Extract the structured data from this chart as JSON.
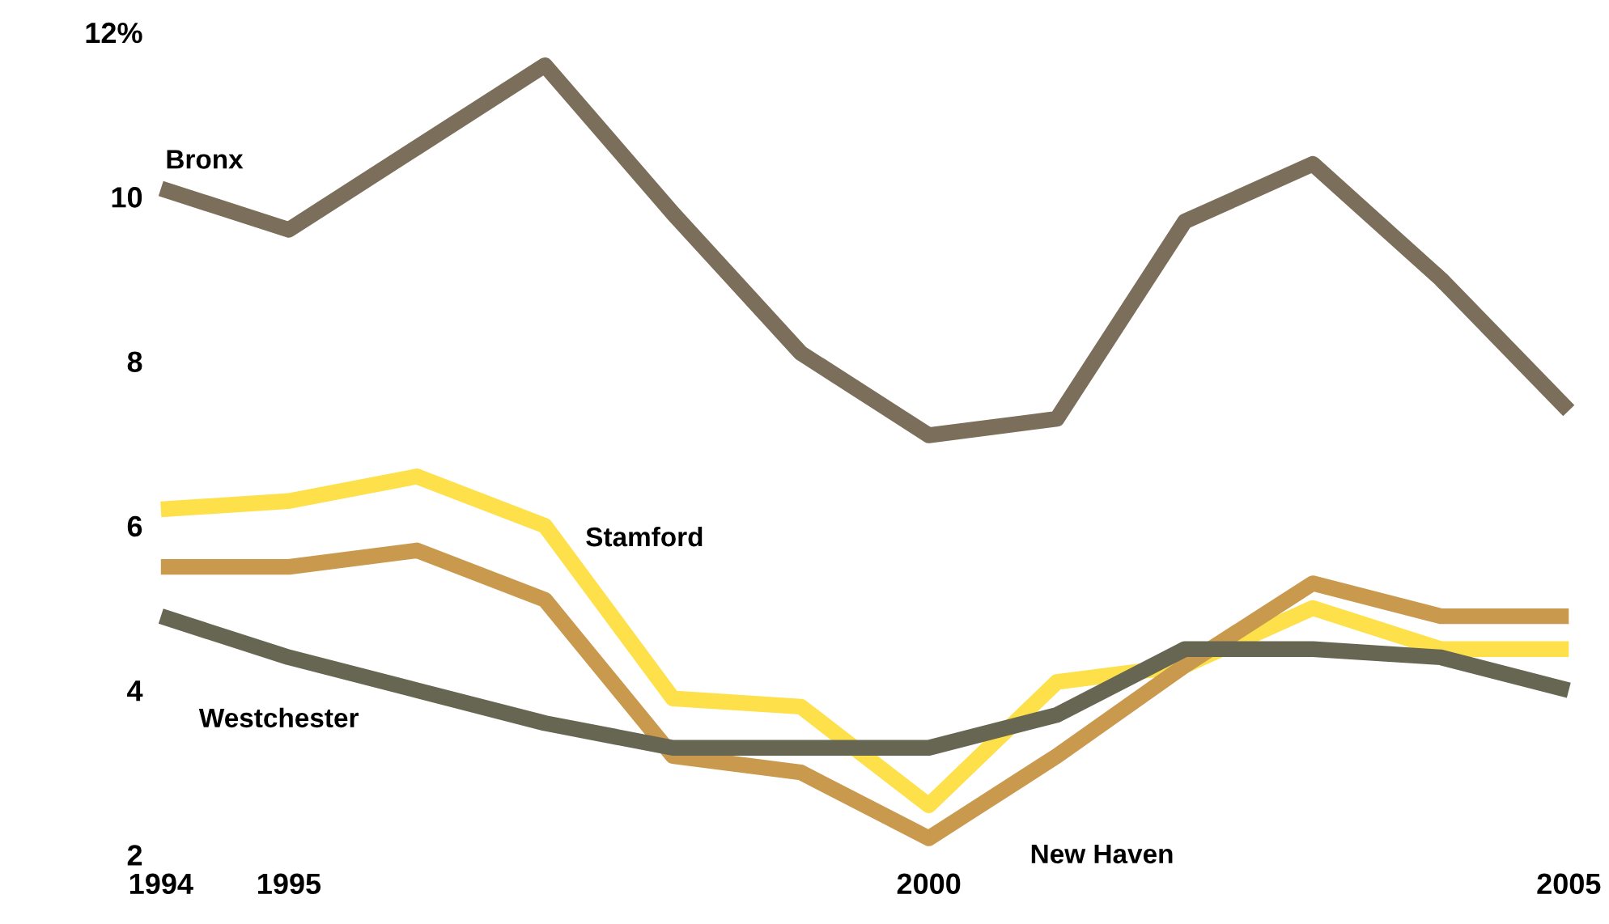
{
  "chart_data": {
    "type": "line",
    "x": [
      1994,
      1995,
      1996,
      1997,
      1998,
      1999,
      2000,
      2001,
      2002,
      2003,
      2004,
      2005
    ],
    "series": [
      {
        "name": "Bronx",
        "color": "#7b6e5a",
        "values": [
          10.1,
          9.6,
          10.6,
          11.6,
          9.8,
          8.1,
          7.1,
          7.3,
          9.7,
          10.4,
          9.0,
          7.4
        ]
      },
      {
        "name": "Stamford",
        "color": "#fde04a",
        "values": [
          6.2,
          6.3,
          6.6,
          6.0,
          3.9,
          3.8,
          2.6,
          4.1,
          4.3,
          5.0,
          4.5,
          4.5
        ]
      },
      {
        "name": "New Haven",
        "color": "#c99a4e",
        "values": [
          5.5,
          5.5,
          5.7,
          5.1,
          3.2,
          3.0,
          2.2,
          3.2,
          4.3,
          5.3,
          4.9,
          4.9
        ]
      },
      {
        "name": "Westchester",
        "color": "#666652",
        "values": [
          4.9,
          4.4,
          4.0,
          3.6,
          3.3,
          3.3,
          3.3,
          3.7,
          4.5,
          4.5,
          4.4,
          4.0
        ]
      }
    ],
    "xlim": [
      1994,
      2005
    ],
    "xticks": [
      1994,
      1995,
      2000,
      2005
    ],
    "ylim": [
      2,
      12
    ],
    "yticks": [
      2,
      4,
      6,
      8,
      10,
      {
        "value": 12,
        "label": "12%"
      }
    ],
    "grid": false,
    "legend": false,
    "marker": "none",
    "line_style": "solid"
  }
}
